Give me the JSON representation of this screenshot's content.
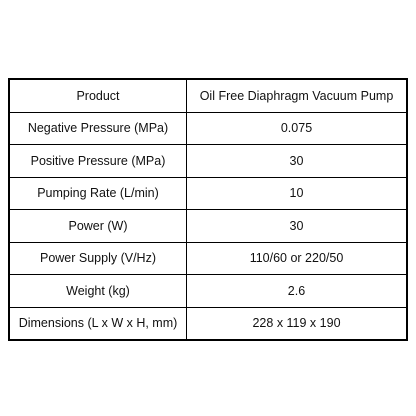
{
  "table": {
    "rows": [
      [
        "Product",
        "Oil Free Diaphragm Vacuum Pump"
      ],
      [
        "Negative Pressure (MPa)",
        "0.075"
      ],
      [
        "Positive Pressure (MPa)",
        "30"
      ],
      [
        "Pumping Rate (L/min)",
        "10"
      ],
      [
        "Power (W)",
        "30"
      ],
      [
        "Power Supply (V/Hz)",
        "110/60 or 220/50"
      ],
      [
        "Weight (kg)",
        "2.6"
      ],
      [
        "Dimensions (L x W x H, mm)",
        "228 x 119 x 190"
      ]
    ]
  }
}
